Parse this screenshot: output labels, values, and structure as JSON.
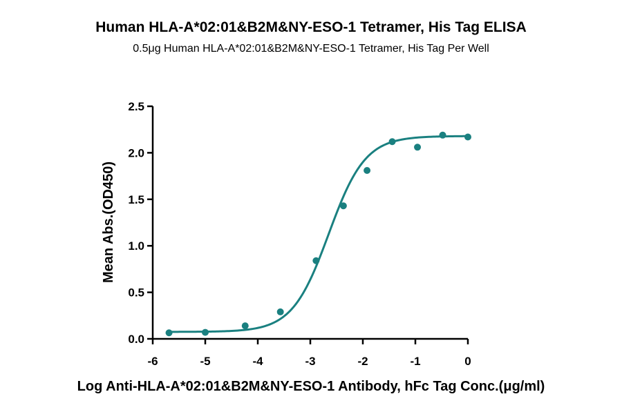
{
  "chart_data": {
    "type": "scatter",
    "title": "Human HLA-A*02:01&B2M&NY-ESO-1 Tetramer, His Tag ELISA",
    "subtitle": "0.5μg Human HLA-A*02:01&B2M&NY-ESO-1 Tetramer, His Tag Per Well",
    "xlabel": "Log Anti-HLA-A*02:01&B2M&NY-ESO-1 Antibody, hFc Tag Conc.(μg/ml)",
    "ylabel": "Mean Abs.(OD450)",
    "xlim": [
      -6,
      0
    ],
    "ylim": [
      0,
      2.5
    ],
    "x_ticks": [
      "-6",
      "-5",
      "-4",
      "-3",
      "-2",
      "-1",
      "0"
    ],
    "y_ticks": [
      "0.0",
      "0.5",
      "1.0",
      "1.5",
      "2.0",
      "2.5"
    ],
    "x_tick_values": [
      -6,
      -5,
      -4,
      -3,
      -2,
      -1,
      0
    ],
    "y_tick_values": [
      0,
      0.5,
      1.0,
      1.5,
      2.0,
      2.5
    ],
    "grid": false,
    "color": "#1a8080",
    "series": [
      {
        "x": [
          -5.69,
          -5.0,
          -4.24,
          -3.57,
          -2.89,
          -2.37,
          -1.92,
          -1.44,
          -0.96,
          -0.48,
          0.0
        ],
        "y": [
          0.065,
          0.07,
          0.14,
          0.29,
          0.84,
          1.43,
          1.81,
          2.12,
          2.06,
          2.19,
          2.17
        ],
        "fit": {
          "bottom": 0.075,
          "top": 2.18,
          "logEC50": -2.65,
          "hill": 1.25
        }
      }
    ]
  }
}
